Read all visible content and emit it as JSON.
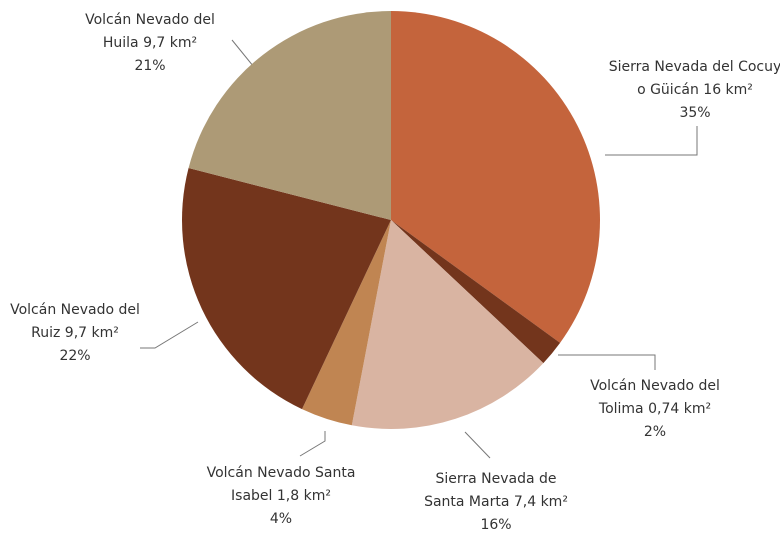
{
  "chart_data": {
    "type": "pie",
    "categories": [
      [
        "Sierra Nevada del Cocuy",
        "o Güicán 16 km²"
      ],
      [
        "Volcán Nevado del",
        "Tolima 0,74 km²"
      ],
      [
        "Sierra Nevada de",
        "Santa Marta 7,4 km²"
      ],
      [
        "Volcán Nevado Santa",
        "Isabel 1,8 km²"
      ],
      [
        "Volcán Nevado del",
        "Ruiz 9,7 km²"
      ],
      [
        "Volcán Nevado del",
        "Huila 9,7 km²"
      ]
    ],
    "values": [
      35,
      2,
      16,
      4,
      22,
      21
    ],
    "value_labels": [
      "35%",
      "2%",
      "16%",
      "4%",
      "22%",
      "21%"
    ],
    "colors": [
      "#c4643c",
      "#73351c",
      "#d9b4a2",
      "#c08552",
      "#73351c",
      "#ad9a76"
    ]
  }
}
